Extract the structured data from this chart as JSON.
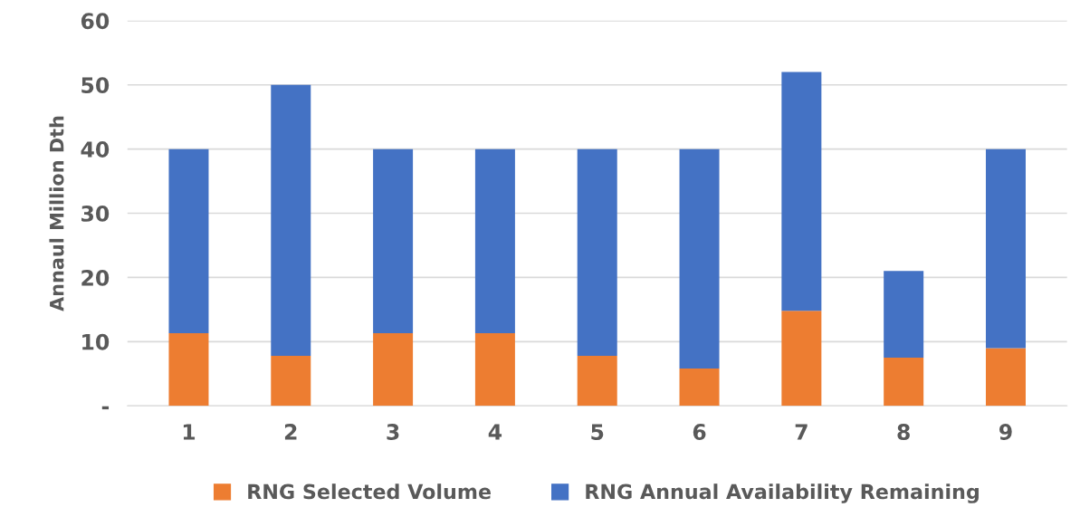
{
  "chart_data": {
    "type": "bar",
    "stacked": true,
    "ylabel": "Annaul Million Dth",
    "categories": [
      "1",
      "2",
      "3",
      "4",
      "5",
      "6",
      "7",
      "8",
      "9"
    ],
    "series": [
      {
        "name": "RNG Selected Volume",
        "color": "#ed7d31",
        "values": [
          11.3,
          7.8,
          11.3,
          11.3,
          7.8,
          5.8,
          14.8,
          7.5,
          9
        ]
      },
      {
        "name": "RNG Annual Availability Remaining",
        "color": "#4472c4",
        "values": [
          28.7,
          42.2,
          28.7,
          28.7,
          32.2,
          34.2,
          37.2,
          13.5,
          31
        ]
      }
    ],
    "ylim": [
      0,
      60
    ],
    "yticks": [
      {
        "value": 0,
        "label": "-"
      },
      10,
      20,
      30,
      40,
      50,
      60
    ],
    "grid": "y",
    "legend": "bottom"
  }
}
